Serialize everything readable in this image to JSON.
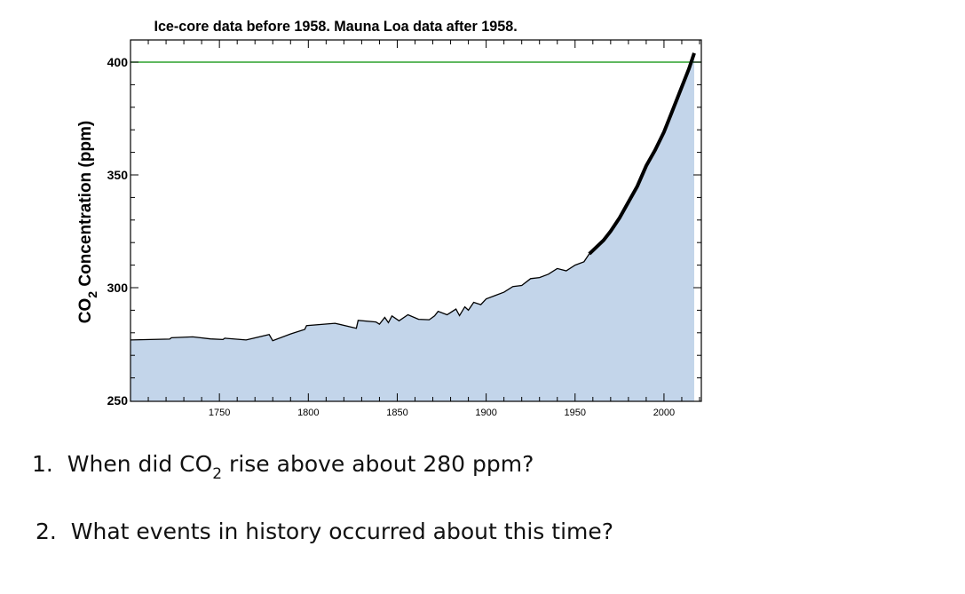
{
  "chart_data": {
    "type": "area",
    "title": "Ice-core data before 1958. Mauna Loa data after 1958.",
    "ylabel_main": "CO",
    "ylabel_sub": "2",
    "ylabel_rest": " Concentration (ppm)",
    "xlim": [
      1700,
      2021
    ],
    "ylim": [
      250,
      410
    ],
    "x_ticks": [
      1750,
      1800,
      1850,
      1900,
      1950,
      2000
    ],
    "y_ticks": [
      250,
      300,
      350,
      400
    ],
    "reference_line": {
      "value": 400,
      "color": "#2ca02c"
    },
    "fill_color": "#c3d5ea",
    "line_color": "#000000",
    "grid": false,
    "series": [
      {
        "x": [
          1700,
          1722,
          1723,
          1735,
          1745,
          1752,
          1753,
          1765,
          1778,
          1780,
          1790,
          1798,
          1799,
          1815,
          1827,
          1828,
          1838,
          1840,
          1843,
          1845,
          1847,
          1851,
          1856,
          1862,
          1868,
          1871,
          1873,
          1878,
          1883,
          1885,
          1888,
          1890,
          1893,
          1897,
          1900,
          1905,
          1910,
          1915,
          1920,
          1925,
          1930,
          1935,
          1940,
          1945,
          1950,
          1955,
          1958,
          1962,
          1966,
          1970,
          1975,
          1980,
          1985,
          1990,
          1995,
          2000,
          2005,
          2010,
          2014,
          2017
        ],
        "y": [
          276.8,
          277.2,
          277.8,
          278.2,
          277.3,
          277.0,
          277.6,
          276.8,
          279.2,
          276.5,
          279.5,
          281.5,
          283.2,
          284.2,
          282.0,
          285.5,
          284.8,
          283.8,
          286.8,
          284.5,
          287.5,
          285.3,
          288.0,
          286.0,
          285.8,
          287.5,
          289.5,
          288.0,
          290.5,
          287.6,
          291.5,
          290.0,
          293.5,
          292.5,
          295.0,
          296.5,
          298.0,
          300.5,
          301.0,
          304.0,
          304.5,
          306.0,
          308.5,
          307.5,
          310.0,
          311.5,
          315.0,
          318.0,
          321.0,
          325.0,
          331.0,
          338.0,
          345.0,
          354.0,
          361.0,
          369.0,
          379.0,
          389.0,
          397.0,
          404.0
        ]
      }
    ]
  },
  "questions": {
    "q1_num": "1.",
    "q1_pre": "When did CO",
    "q1_sub": "2",
    "q1_post": " rise above about 280 ppm?",
    "q2_num": "2.",
    "q2_text": "What events in history occurred about this time?"
  }
}
